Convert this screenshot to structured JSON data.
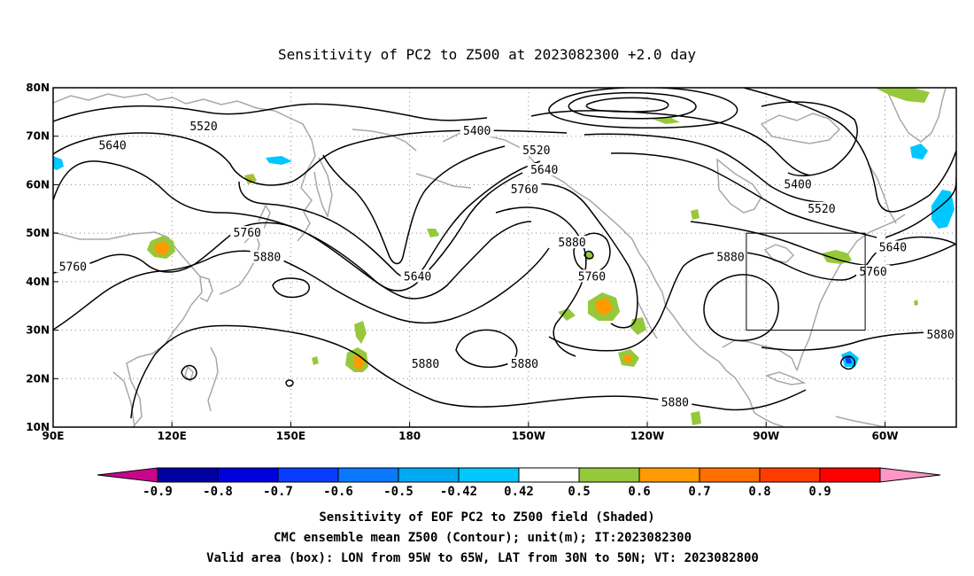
{
  "title": "Sensitivity of PC2 to Z500 at 2023082300 +2.0 day",
  "map": {
    "lon_labels": [
      "90E",
      "120E",
      "150E",
      "180",
      "150W",
      "120W",
      "90W",
      "60W"
    ],
    "lat_labels": [
      "80N",
      "70N",
      "60N",
      "50N",
      "40N",
      "30N",
      "20N",
      "10N"
    ],
    "contour_labels": [
      {
        "text": "5520",
        "lon": 128,
        "lat": 72
      },
      {
        "text": "5640",
        "lon": 105,
        "lat": 68
      },
      {
        "text": "5400",
        "lon": 197,
        "lat": 71
      },
      {
        "text": "5520",
        "lon": 212,
        "lat": 67
      },
      {
        "text": "5640",
        "lon": 214,
        "lat": 63
      },
      {
        "text": "5760",
        "lon": 209,
        "lat": 59
      },
      {
        "text": "5400",
        "lon": 278,
        "lat": 60
      },
      {
        "text": "5520",
        "lon": 284,
        "lat": 55
      },
      {
        "text": "5640",
        "lon": 302,
        "lat": 47
      },
      {
        "text": "5760",
        "lon": 297,
        "lat": 42
      },
      {
        "text": "5760",
        "lon": 139,
        "lat": 50
      },
      {
        "text": "5880",
        "lon": 144,
        "lat": 45
      },
      {
        "text": "5760",
        "lon": 95,
        "lat": 43
      },
      {
        "text": "5640",
        "lon": 182,
        "lat": 41
      },
      {
        "text": "5880",
        "lon": 221,
        "lat": 48
      },
      {
        "text": "5760",
        "lon": 226,
        "lat": 41
      },
      {
        "text": "5880",
        "lon": 261,
        "lat": 45
      },
      {
        "text": "5880",
        "lon": 184,
        "lat": 23
      },
      {
        "text": "5880",
        "lon": 209,
        "lat": 23
      },
      {
        "text": "5880",
        "lon": 247,
        "lat": 15
      },
      {
        "text": "5880",
        "lon": 314,
        "lat": 29
      }
    ],
    "valid_box": {
      "lon_min": 265,
      "lon_max": 295,
      "lat_min": 30,
      "lat_max": 50
    }
  },
  "colorbar": {
    "labels": [
      "-0.9",
      "-0.8",
      "-0.7",
      "-0.6",
      "-0.5",
      "-0.42",
      "0.42",
      "0.5",
      "0.6",
      "0.7",
      "0.8",
      "0.9"
    ],
    "colors": [
      "#c8068c",
      "#0000a0",
      "#0000dc",
      "#0a3cff",
      "#0a78ff",
      "#00aaf0",
      "#00c8ff",
      "#ffffff",
      "#96c83c",
      "#ff9b00",
      "#ff6e00",
      "#ff3c00",
      "#ff0000",
      "#ff96c8"
    ]
  },
  "caption": {
    "line1": "Sensitivity of EOF PC2 to Z500 field (Shaded)",
    "line2": "CMC ensemble mean Z500 (Contour); unit(m); IT:2023082300",
    "line3": "Valid area (box): LON from 95W to 65W, LAT from 30N to 50N; VT: 2023082800"
  }
}
